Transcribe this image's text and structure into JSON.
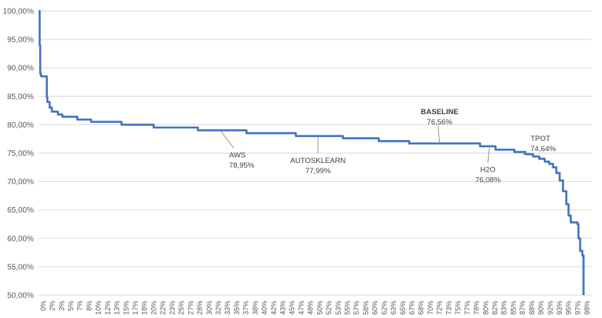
{
  "chart_data": {
    "type": "line",
    "title": "",
    "xlabel": "",
    "ylabel": "",
    "ylim": [
      0.5,
      1.0
    ],
    "xlim": [
      0,
      100
    ],
    "grid": "horizontal",
    "legend": "none",
    "y_ticks": [
      "50,00%",
      "55,00%",
      "60,00%",
      "65,00%",
      "70,00%",
      "75,00%",
      "80,00%",
      "85,00%",
      "90,00%",
      "95,00%",
      "100,00%"
    ],
    "x_ticks": [
      "0%",
      "2%",
      "3%",
      "5%",
      "7%",
      "8%",
      "10%",
      "12%",
      "13%",
      "15%",
      "17%",
      "18%",
      "20%",
      "22%",
      "23%",
      "25%",
      "27%",
      "28%",
      "30%",
      "32%",
      "33%",
      "35%",
      "37%",
      "38%",
      "40%",
      "42%",
      "43%",
      "45%",
      "47%",
      "48%",
      "50%",
      "52%",
      "53%",
      "55%",
      "57%",
      "58%",
      "60%",
      "62%",
      "63%",
      "65%",
      "67%",
      "68%",
      "70%",
      "72%",
      "73%",
      "75%",
      "77%",
      "78%",
      "80%",
      "82%",
      "83%",
      "85%",
      "87%",
      "88%",
      "90%",
      "92%",
      "93%",
      "95%",
      "97%",
      "98%"
    ],
    "series": [
      {
        "color": "#4472c4",
        "x": [
          0,
          0.2,
          0.3,
          0.4,
          0.5,
          1.4,
          1.5,
          1.6,
          2.0,
          2.4,
          3.5,
          4.3,
          7.0,
          9.5,
          15.0,
          20.8,
          28.8,
          37.6,
          46.5,
          55.0,
          61.5,
          67.0,
          79.8,
          82.6,
          86.0,
          88.0,
          89.4,
          90.5,
          91.5,
          92.3,
          93.0,
          93.6,
          94.2,
          94.8,
          95.4,
          95.8,
          96.2,
          97.4,
          97.6,
          97.9,
          98.3,
          98.5
        ],
        "y": [
          1.0,
          0.94,
          0.89,
          0.887,
          0.885,
          0.885,
          0.848,
          0.84,
          0.83,
          0.823,
          0.818,
          0.814,
          0.809,
          0.805,
          0.8,
          0.795,
          0.79,
          0.785,
          0.78,
          0.776,
          0.771,
          0.767,
          0.762,
          0.756,
          0.752,
          0.748,
          0.744,
          0.74,
          0.735,
          0.731,
          0.725,
          0.715,
          0.702,
          0.683,
          0.66,
          0.64,
          0.628,
          0.625,
          0.6,
          0.578,
          0.57,
          0.5
        ]
      }
    ],
    "annotations": [
      {
        "name": "AWS",
        "value": "78,95%",
        "x": 33.0,
        "y": 0.7895,
        "color": "#404040"
      },
      {
        "name": "AUTOSKLEARN",
        "value": "77,99%",
        "x": 50.5,
        "y": 0.7799,
        "color": "#404040"
      },
      {
        "name": "BASELINE",
        "value": "76,56%",
        "x": 72.5,
        "y": 0.7656,
        "color": "#ff0000"
      },
      {
        "name": "H2O",
        "value": "76,08%",
        "x": 81.5,
        "y": 0.7608,
        "color": "#404040"
      },
      {
        "name": "TPOT",
        "value": "74,64%",
        "x": 87.5,
        "y": 0.7464,
        "color": "#404040"
      }
    ],
    "colors": {
      "line": "#4472c4",
      "grid": "#d9d9d9",
      "text": "#595959",
      "highlight": "#ff0000"
    }
  }
}
